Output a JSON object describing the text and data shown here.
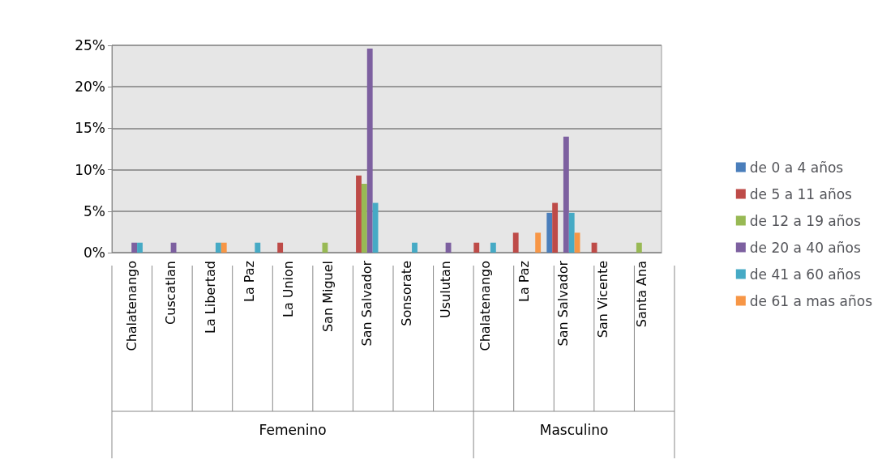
{
  "chart_data": {
    "type": "bar",
    "categories": [
      "Chalatenango",
      "Cuscatlan",
      "La Libertad",
      "La Paz",
      "La Union",
      "San Miguel",
      "San Salvador",
      "Sonsorate",
      "Usulutan",
      "Chalatenango",
      "La Paz",
      "San Salvador",
      "San Vicente",
      "Santa Ana"
    ],
    "series": [
      {
        "name": "de 0 a 4 años",
        "color": "#4a7ebb",
        "values": [
          0,
          0,
          0,
          0,
          0,
          0,
          0,
          0,
          0,
          0,
          0,
          4.8,
          0,
          0
        ]
      },
      {
        "name": "de 5 a 11 años",
        "color": "#be4b48",
        "values": [
          0,
          0,
          0,
          0,
          1.2,
          0,
          9.3,
          0,
          0,
          1.2,
          2.4,
          6.0,
          1.2,
          0
        ]
      },
      {
        "name": "de 12 a 19 años",
        "color": "#98b954",
        "values": [
          0,
          0,
          0,
          0,
          0,
          1.2,
          8.3,
          0,
          0,
          0,
          0,
          0,
          0,
          1.2
        ]
      },
      {
        "name": "de 20 a 40 años",
        "color": "#7d60a0",
        "values": [
          1.2,
          1.2,
          0,
          0,
          0,
          0,
          24.6,
          0,
          1.2,
          0,
          0,
          14.0,
          0,
          0
        ]
      },
      {
        "name": "de 41 a 60 años",
        "color": "#46aac5",
        "values": [
          1.2,
          0,
          1.2,
          1.2,
          0,
          0,
          6.0,
          1.2,
          0,
          1.2,
          0,
          4.8,
          0,
          0
        ]
      },
      {
        "name": "de 61 a mas años",
        "color": "#f79646",
        "values": [
          0,
          0,
          1.2,
          0,
          0,
          0,
          0,
          0,
          0,
          0,
          2.4,
          2.4,
          0,
          0
        ]
      }
    ],
    "ylim": [
      0,
      25
    ],
    "yticks": [
      {
        "value": 0,
        "label": "0%"
      },
      {
        "value": 5,
        "label": "5%"
      },
      {
        "value": 10,
        "label": "10%"
      },
      {
        "value": 15,
        "label": "15%"
      },
      {
        "value": 20,
        "label": "20%"
      },
      {
        "value": 25,
        "label": "25%"
      }
    ],
    "grid": "y",
    "legend": "right",
    "annotations": [
      "Femenino",
      "Masculino"
    ]
  }
}
